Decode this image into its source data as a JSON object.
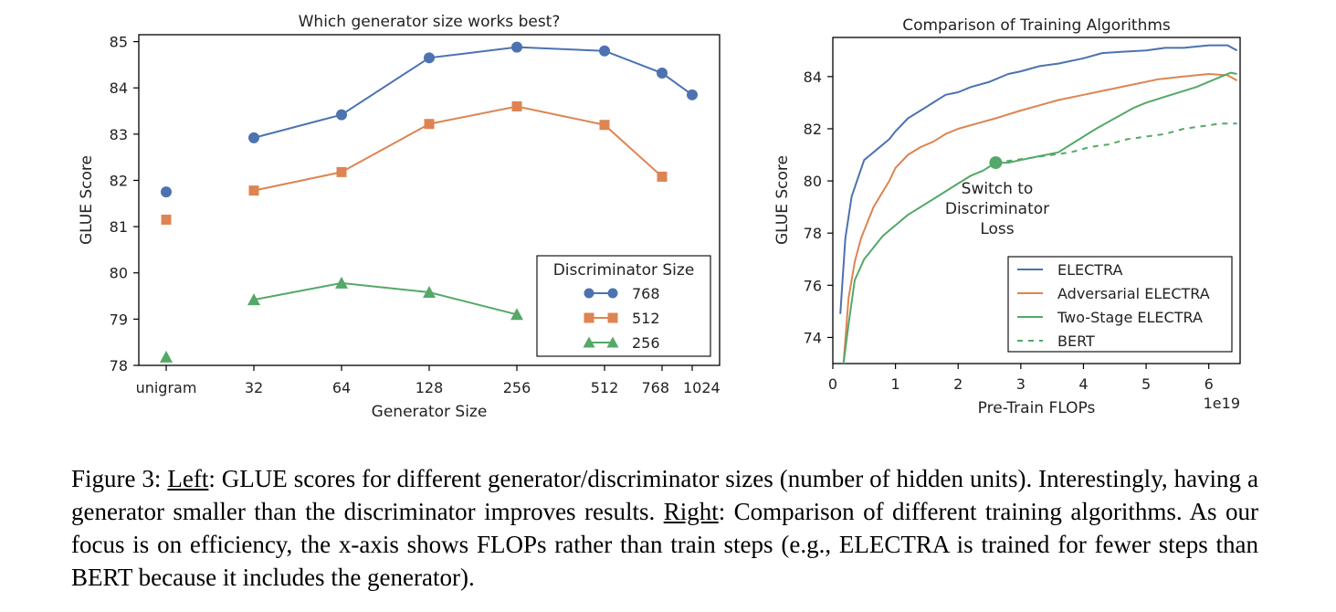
{
  "colors": {
    "blue": "#4c72b0",
    "orange": "#dd8452",
    "green": "#55a868"
  },
  "chart_data": [
    {
      "type": "line",
      "title": "Which generator size works best?",
      "xlabel": "Generator Size",
      "ylabel": "GLUE Score",
      "categories": [
        "unigram",
        "32",
        "64",
        "128",
        "256",
        "512",
        "768",
        "1024"
      ],
      "yticks": [
        "78",
        "79",
        "80",
        "81",
        "82",
        "83",
        "84",
        "85"
      ],
      "ylim": [
        78,
        85.15
      ],
      "legend": {
        "title": "Discriminator Size",
        "position": "lower-right"
      },
      "series": [
        {
          "name": "768",
          "color": "#4c72b0",
          "marker": "circle",
          "values": [
            81.75,
            82.92,
            83.42,
            84.65,
            84.88,
            84.8,
            84.32,
            83.85
          ]
        },
        {
          "name": "512",
          "color": "#dd8452",
          "marker": "square",
          "values": [
            81.15,
            81.78,
            82.18,
            83.22,
            83.6,
            83.2,
            82.08,
            null
          ]
        },
        {
          "name": "256",
          "color": "#55a868",
          "marker": "triangle",
          "values": [
            78.18,
            79.42,
            79.78,
            79.58,
            79.1,
            null,
            null,
            null
          ]
        }
      ]
    },
    {
      "type": "line",
      "title": "Comparison of Training Algorithms",
      "xlabel": "Pre-Train FLOPs",
      "ylabel": "GLUE Score",
      "x_multiplier": "1e19",
      "xticks": [
        "0",
        "1",
        "2",
        "3",
        "4",
        "5",
        "6"
      ],
      "yticks": [
        "74",
        "76",
        "78",
        "80",
        "82",
        "84"
      ],
      "xlim": [
        0,
        6.5
      ],
      "ylim": [
        73,
        85.5
      ],
      "annotation": {
        "text": [
          "Switch to",
          "Discriminator",
          "Loss"
        ],
        "x": 2.6,
        "y": 80.7
      },
      "legend": {
        "position": "lower-right"
      },
      "series": [
        {
          "name": "ELECTRA",
          "color": "#4c72b0",
          "style": "solid",
          "x": [
            0.12,
            0.2,
            0.3,
            0.4,
            0.5,
            0.6,
            0.7,
            0.8,
            0.9,
            1.0,
            1.2,
            1.4,
            1.6,
            1.8,
            2.0,
            2.2,
            2.5,
            2.8,
            3.0,
            3.3,
            3.6,
            4.0,
            4.3,
            4.6,
            5.0,
            5.3,
            5.6,
            6.0,
            6.3,
            6.45
          ],
          "y": [
            74.9,
            77.8,
            79.4,
            80.1,
            80.8,
            81.0,
            81.2,
            81.4,
            81.6,
            81.9,
            82.4,
            82.7,
            83.0,
            83.3,
            83.4,
            83.6,
            83.8,
            84.1,
            84.2,
            84.4,
            84.5,
            84.7,
            84.9,
            84.95,
            85.0,
            85.1,
            85.1,
            85.2,
            85.2,
            85.0
          ]
        },
        {
          "name": "Adversarial ELECTRA",
          "color": "#dd8452",
          "style": "solid",
          "x": [
            0.17,
            0.25,
            0.35,
            0.45,
            0.55,
            0.65,
            0.75,
            0.9,
            1.0,
            1.2,
            1.4,
            1.6,
            1.8,
            2.0,
            2.3,
            2.6,
            3.0,
            3.3,
            3.6,
            4.0,
            4.4,
            4.8,
            5.2,
            5.6,
            6.0,
            6.3,
            6.45
          ],
          "y": [
            73.0,
            75.5,
            76.9,
            77.8,
            78.4,
            79.0,
            79.4,
            80.0,
            80.5,
            81.0,
            81.3,
            81.5,
            81.8,
            82.0,
            82.2,
            82.4,
            82.7,
            82.9,
            83.1,
            83.3,
            83.5,
            83.7,
            83.9,
            84.0,
            84.1,
            84.05,
            83.85
          ]
        },
        {
          "name": "Two-Stage ELECTRA",
          "color": "#55a868",
          "style": "solid",
          "x": [
            0.17,
            0.25,
            0.35,
            0.5,
            0.6,
            0.7,
            0.8,
            0.9,
            1.0,
            1.2,
            1.4,
            1.6,
            1.8,
            2.0,
            2.2,
            2.4,
            2.6,
            2.8,
            3.0,
            3.3,
            3.6,
            3.8,
            4.0,
            4.2,
            4.5,
            4.8,
            5.0,
            5.4,
            5.8,
            6.0,
            6.2,
            6.35,
            6.45
          ],
          "y": [
            73.0,
            74.5,
            76.2,
            77.0,
            77.3,
            77.6,
            77.9,
            78.1,
            78.3,
            78.7,
            79.0,
            79.3,
            79.6,
            79.9,
            80.2,
            80.4,
            80.7,
            80.7,
            80.8,
            80.95,
            81.1,
            81.4,
            81.7,
            82.0,
            82.4,
            82.8,
            83.0,
            83.3,
            83.6,
            83.8,
            84.0,
            84.15,
            84.1
          ]
        },
        {
          "name": "BERT",
          "color": "#55a868",
          "style": "dashed",
          "x": [
            2.6,
            2.9,
            3.2,
            3.5,
            3.8,
            4.1,
            4.4,
            4.7,
            5.0,
            5.3,
            5.6,
            5.9,
            6.2,
            6.45
          ],
          "y": [
            80.7,
            80.8,
            80.9,
            81.0,
            81.1,
            81.3,
            81.4,
            81.6,
            81.7,
            81.8,
            82.0,
            82.1,
            82.2,
            82.2
          ]
        }
      ]
    }
  ],
  "caption": {
    "label": "Figure 3: ",
    "left_word": "Left",
    "left_text": ": GLUE scores for different generator/discriminator sizes (number of hidden units). Interestingly, having a generator smaller than the discriminator improves results. ",
    "right_word": "Right",
    "right_text": ": Comparison of different training algorithms. As our focus is on efficiency, the x-axis shows FLOPs rather than train steps (e.g., ELECTRA is trained for fewer steps than BERT because it includes the generator)."
  }
}
